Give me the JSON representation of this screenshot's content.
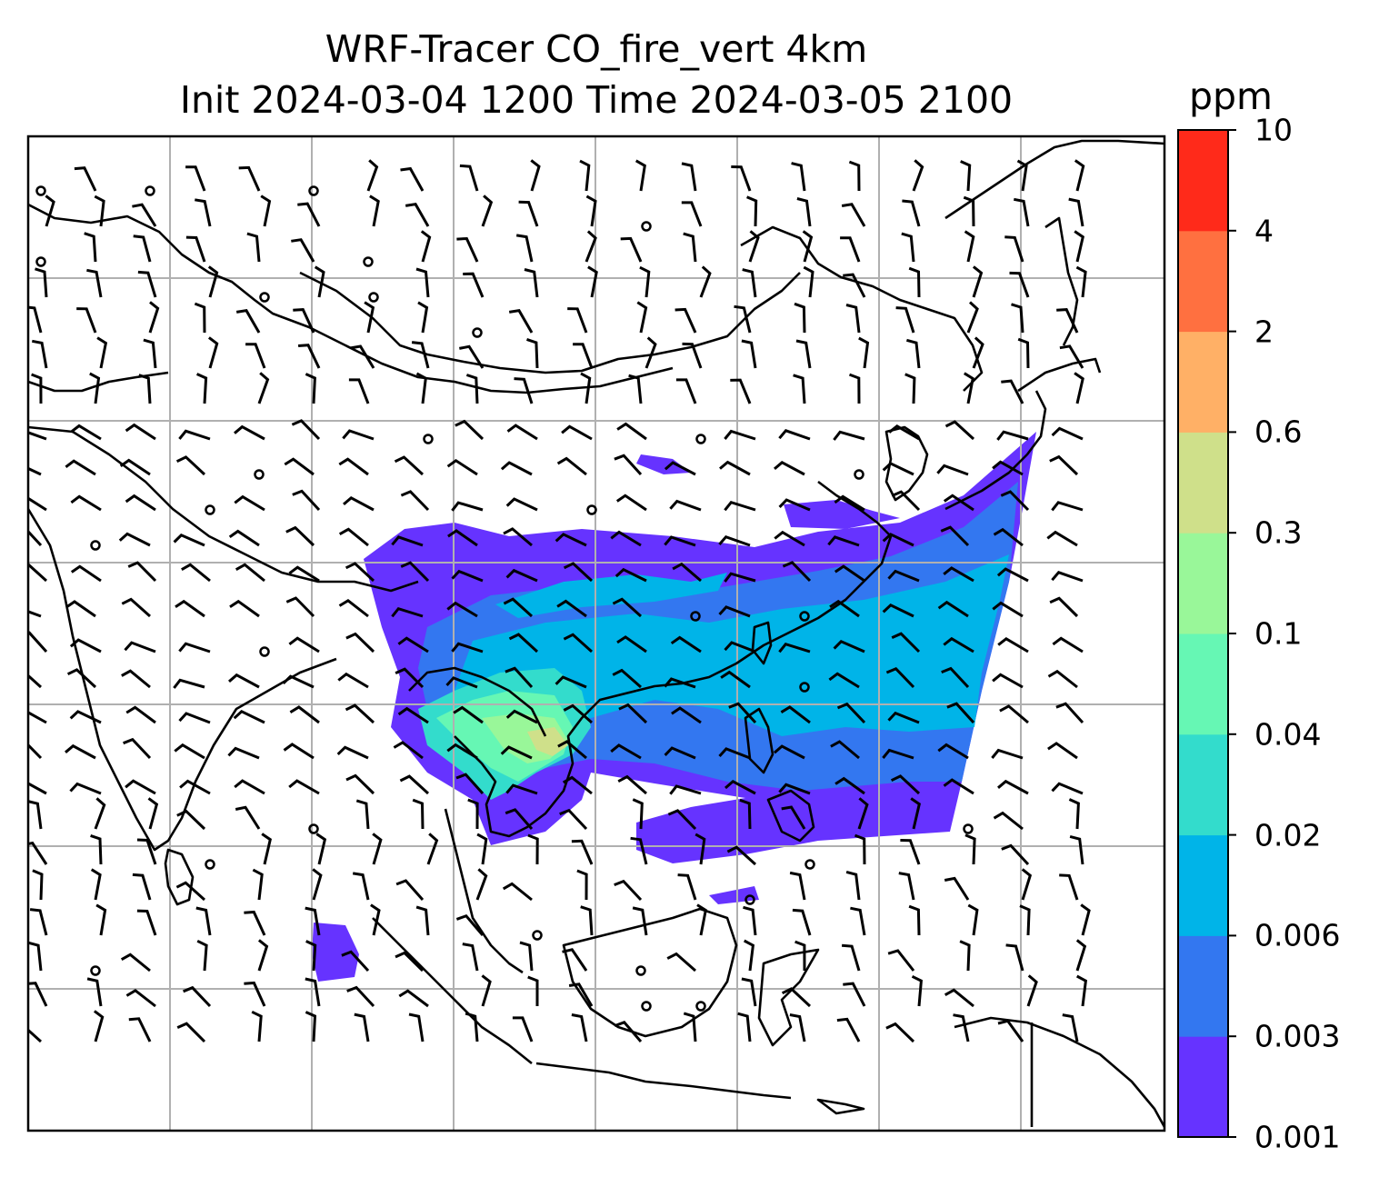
{
  "title": {
    "line1": "WRF-Tracer CO_fire_vert 4km",
    "line2": "Init 2024-03-04 1200 Time 2024-03-05 2100"
  },
  "colorbar": {
    "label": "ppm",
    "levels": [
      "0.001",
      "0.003",
      "0.006",
      "0.02",
      "0.04",
      "0.1",
      "0.3",
      "0.6",
      "2",
      "4",
      "10"
    ],
    "colors": [
      "#6633ff",
      "#3377f0",
      "#00b4e8",
      "#33dccc",
      "#66f7b4",
      "#99f799",
      "#cfe08a",
      "#ffb066",
      "#ff7040",
      "#ff2a1a"
    ]
  },
  "colors": {
    "coastline": "#000000",
    "gridline": "#b0b0b0",
    "wind_barb": "#000000"
  }
}
